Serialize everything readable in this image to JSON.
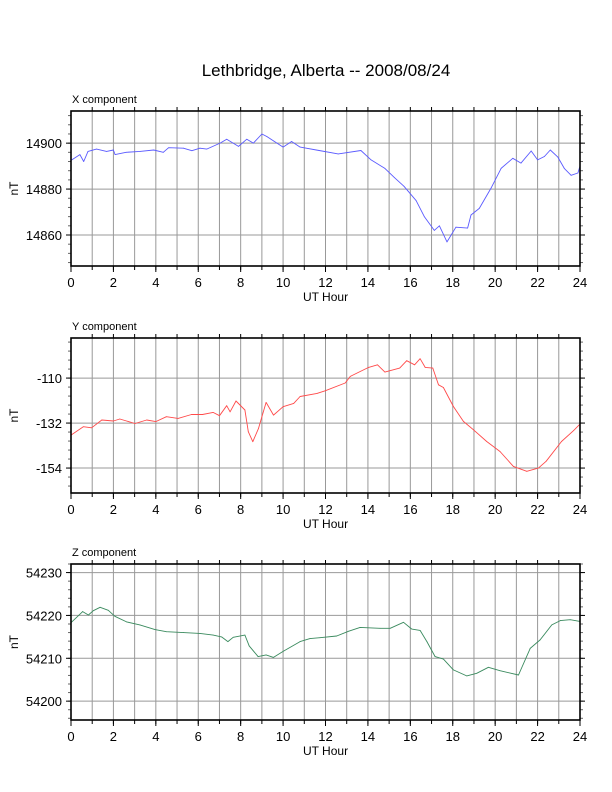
{
  "title": "Lethbridge, Alberta -- 2008/08/24",
  "chart_data": [
    {
      "type": "line",
      "title": "X component",
      "xlabel": "UT Hour",
      "ylabel": "nT",
      "xlim": [
        0,
        24
      ],
      "ylim": [
        14846.5,
        14914
      ],
      "xticks": [
        0,
        2,
        4,
        6,
        8,
        10,
        12,
        14,
        16,
        18,
        20,
        22,
        24
      ],
      "yticks": [
        14860,
        14880,
        14900
      ],
      "grid": true,
      "color": "#5a5aff",
      "x": [
        0,
        0.42,
        0.6,
        0.8,
        1.2,
        1.68,
        2,
        2.08,
        2.6,
        3.25,
        3.9,
        4.35,
        4.6,
        5.3,
        5.7,
        6.08,
        6.4,
        7.03,
        7.34,
        7.9,
        8.29,
        8.6,
        9.0,
        9.23,
        9.55,
        10.0,
        10.4,
        10.8,
        11.7,
        12.6,
        13.67,
        14.15,
        14.8,
        15.25,
        15.7,
        16.27,
        16.66,
        17.13,
        17.37,
        17.73,
        18.15,
        18.7,
        18.86,
        19.25,
        19.8,
        20.28,
        20.83,
        21.22,
        21.7,
        22.0,
        22.32,
        22.6,
        22.95,
        23.26,
        23.58,
        23.9,
        24
      ],
      "y": [
        14892.5,
        14895,
        14892,
        14896.4,
        14897.4,
        14896.4,
        14897,
        14895,
        14896,
        14896.4,
        14897,
        14896,
        14898,
        14897.8,
        14896.7,
        14897.8,
        14897.4,
        14900,
        14901.7,
        14898.6,
        14901.7,
        14900,
        14904,
        14902.9,
        14901,
        14898.3,
        14900.7,
        14898.3,
        14896.8,
        14895.3,
        14896.8,
        14892.7,
        14889,
        14885,
        14881.2,
        14875,
        14868,
        14862,
        14864,
        14857,
        14863.4,
        14863,
        14868.7,
        14871.6,
        14880.3,
        14889,
        14893.4,
        14891.3,
        14896.6,
        14892.7,
        14894.2,
        14897,
        14894,
        14889,
        14886,
        14887,
        14890
      ]
    },
    {
      "type": "line",
      "title": "Y component",
      "xlabel": "UT Hour",
      "ylabel": "nT",
      "xlim": [
        0,
        24
      ],
      "ylim": [
        -166.2,
        -90.4
      ],
      "xticks": [
        0,
        2,
        4,
        6,
        8,
        10,
        12,
        14,
        16,
        18,
        20,
        22,
        24
      ],
      "yticks": [
        -154,
        -132,
        -110
      ],
      "grid": true,
      "color": "#ff4a4a",
      "x": [
        0,
        0.58,
        0.97,
        1.45,
        2,
        2.3,
        3.02,
        3.57,
        4.0,
        4.5,
        5.05,
        5.68,
        6.2,
        6.7,
        7.0,
        7.34,
        7.5,
        7.78,
        8.2,
        8.36,
        8.57,
        8.84,
        9.2,
        9.55,
        10.0,
        10.5,
        10.8,
        11.6,
        11.98,
        12.93,
        13.17,
        14.03,
        14.45,
        14.8,
        15.5,
        15.83,
        16.2,
        16.46,
        16.7,
        17.06,
        17.33,
        17.56,
        18.03,
        18.5,
        18.98,
        19.6,
        20.23,
        20.86,
        21.49,
        22.04,
        22.4,
        23.13,
        23.7,
        24
      ],
      "y": [
        -137.9,
        -133.8,
        -134.3,
        -130.5,
        -131,
        -130,
        -132.2,
        -130.5,
        -131.3,
        -128.9,
        -129.7,
        -127.8,
        -127.8,
        -126.8,
        -128.4,
        -123.5,
        -126.5,
        -121.2,
        -125.6,
        -136.2,
        -141.1,
        -134.6,
        -121.9,
        -128.1,
        -124,
        -122.4,
        -119,
        -117.5,
        -116.2,
        -112.4,
        -109.2,
        -104.8,
        -103.5,
        -107.1,
        -105.1,
        -101.5,
        -103.5,
        -100.5,
        -104.8,
        -105.1,
        -113.3,
        -114.6,
        -123.9,
        -131.2,
        -135.3,
        -141,
        -145.9,
        -153.2,
        -155.6,
        -154,
        -150.7,
        -141,
        -135.7,
        -132.5
      ]
    },
    {
      "type": "line",
      "title": "Z component",
      "xlabel": "UT Hour",
      "ylabel": "nT",
      "xlim": [
        0,
        24
      ],
      "ylim": [
        54195.6,
        54232
      ],
      "xticks": [
        0,
        2,
        4,
        6,
        8,
        10,
        12,
        14,
        16,
        18,
        20,
        22,
        24
      ],
      "yticks": [
        54200,
        54210,
        54220,
        54230
      ],
      "grid": true,
      "color": "#3a8a5e",
      "x": [
        0,
        0.55,
        0.82,
        1.05,
        1.37,
        1.76,
        2.07,
        2.62,
        3.25,
        3.96,
        4.5,
        5.3,
        6.08,
        6.7,
        7.1,
        7.4,
        7.65,
        8.2,
        8.4,
        8.82,
        9.2,
        9.55,
        10.0,
        10.8,
        11.27,
        11.74,
        12.53,
        13.08,
        13.63,
        14.57,
        15.05,
        15.68,
        16.07,
        16.46,
        16.78,
        17.17,
        17.56,
        18.03,
        18.66,
        19.13,
        19.68,
        20.23,
        21.1,
        21.65,
        22.12,
        22.67,
        23.07,
        23.54,
        24
      ],
      "y": [
        54218.3,
        54220.9,
        54220.1,
        54221.1,
        54221.9,
        54221.2,
        54219.8,
        54218.5,
        54217.8,
        54216.7,
        54216.2,
        54216,
        54215.8,
        54215.4,
        54215,
        54213.9,
        54214.9,
        54215.4,
        54212.9,
        54210.4,
        54210.8,
        54210.2,
        54211.6,
        54213.9,
        54214.6,
        54214.8,
        54215.2,
        54216.3,
        54217.2,
        54217,
        54217,
        54218.4,
        54216.8,
        54216.5,
        54213.9,
        54210.4,
        54209.8,
        54207.3,
        54205.9,
        54206.5,
        54207.9,
        54207.1,
        54206.1,
        54212.3,
        54214.3,
        54217.8,
        54218.8,
        54219,
        54218.6
      ]
    }
  ]
}
